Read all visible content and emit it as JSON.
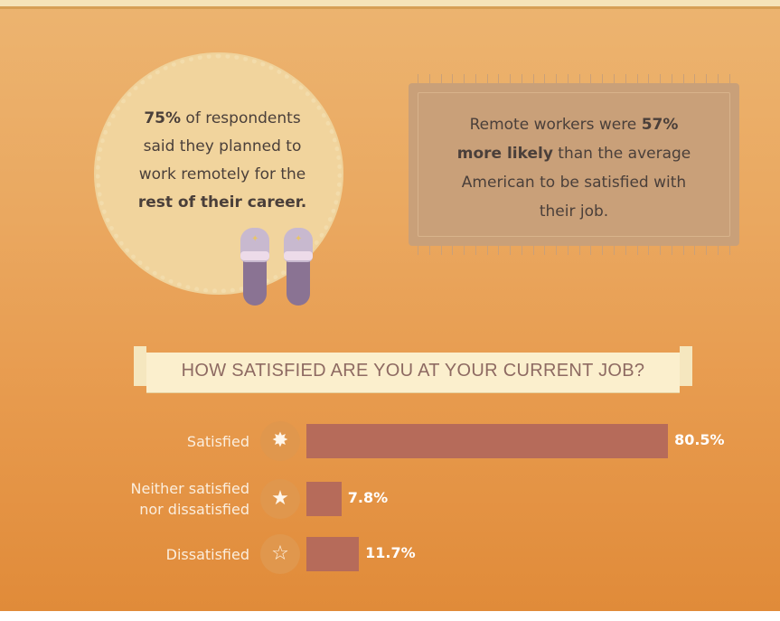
{
  "callouts": {
    "rug_circle": {
      "line1_bold": "75%",
      "line1_rest": " of respondents",
      "line2": "said they planned to",
      "line3": "work remotely for the",
      "line4_bold": "rest of their career."
    },
    "rug_rect": {
      "line1_rest": "Remote workers were ",
      "line1_bold": "57%",
      "line2_bold": "more likely",
      "line2_rest": " than the average",
      "line3": "American to be satisfied with",
      "line4": "their job."
    }
  },
  "chart_data": {
    "type": "bar",
    "orientation": "horizontal",
    "title": "HOW SATISFIED ARE YOU AT YOUR CURRENT JOB?",
    "categories": [
      "Satisfied",
      "Neither satisfied nor dissatisfied",
      "Dissatisfied"
    ],
    "category_lines": [
      [
        "Satisfied"
      ],
      [
        "Neither satisfied",
        "nor dissatisfied"
      ],
      [
        "Dissatisfied"
      ]
    ],
    "values": [
      80.5,
      7.8,
      11.7
    ],
    "value_labels": [
      "80.5%",
      "7.8%",
      "11.7%"
    ],
    "icons": [
      "sparkle-star-icon",
      "filled-star-icon",
      "outline-star-icon"
    ],
    "xlim": [
      0,
      100
    ],
    "bar_color": "#b66b5a"
  },
  "colors": {
    "background": "#e9a85c",
    "bar": "#b66b5a",
    "banner": "#fbefcd",
    "text_dark": "#4a3f3a"
  }
}
